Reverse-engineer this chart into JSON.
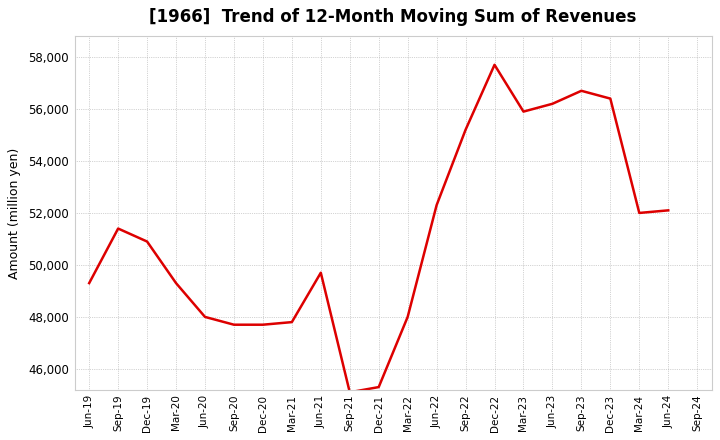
{
  "title": "[1966]  Trend of 12-Month Moving Sum of Revenues",
  "ylabel": "Amount (million yen)",
  "ylim": [
    45200,
    58800
  ],
  "yticks": [
    46000,
    48000,
    50000,
    52000,
    54000,
    56000,
    58000
  ],
  "line_color": "#dd0000",
  "bg_color": "#ffffff",
  "plot_bg_color": "#ffffff",
  "grid_color": "#aaaaaa",
  "x_labels": [
    "Jun-19",
    "Sep-19",
    "Dec-19",
    "Mar-20",
    "Jun-20",
    "Sep-20",
    "Dec-20",
    "Mar-21",
    "Jun-21",
    "Sep-21",
    "Dec-21",
    "Mar-22",
    "Jun-22",
    "Sep-22",
    "Dec-22",
    "Mar-23",
    "Jun-23",
    "Sep-23",
    "Dec-23",
    "Mar-24",
    "Jun-24",
    "Sep-24"
  ],
  "values": [
    49300,
    51400,
    50900,
    49300,
    48000,
    47700,
    47700,
    47800,
    49700,
    45100,
    45300,
    48000,
    52300,
    55200,
    57700,
    55900,
    56200,
    56700,
    56400,
    52000,
    52100,
    null
  ],
  "figsize": [
    7.2,
    4.4
  ],
  "dpi": 100,
  "title_fontsize": 12,
  "ylabel_fontsize": 9,
  "tick_labelsize": 8.5,
  "xtick_labelsize": 7.5,
  "linewidth": 1.8
}
